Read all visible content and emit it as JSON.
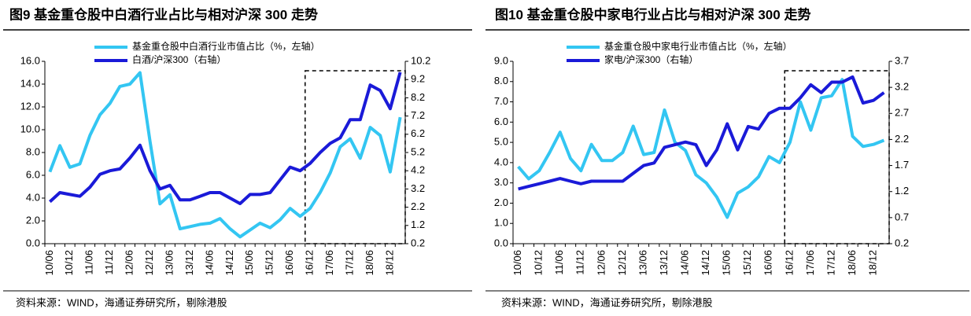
{
  "chart_data": [
    {
      "type": "line",
      "title": "图9  基金重仓股中白酒行业占比与相对沪深 300 走势",
      "source": "资料来源：WIND，海通证券研究所，剔除港股",
      "categories": [
        "10/06",
        null,
        "10/12",
        null,
        "11/06",
        null,
        "11/12",
        null,
        "12/06",
        null,
        "12/12",
        null,
        "13/06",
        null,
        "13/12",
        null,
        "14/06",
        null,
        "14/12",
        null,
        "15/06",
        null,
        "15/12",
        null,
        "16/06",
        null,
        "16/12",
        null,
        "17/06",
        null,
        "17/12",
        null,
        "18/06",
        null,
        "18/12",
        null
      ],
      "series": [
        {
          "name": "基金重仓股中白酒行业市值占比（%，左轴）",
          "color": "#33c6f2",
          "values": [
            6.3,
            8.6,
            6.7,
            7.0,
            9.5,
            11.3,
            12.3,
            13.8,
            14.0,
            15.0,
            9.0,
            3.5,
            4.3,
            1.3,
            1.5,
            1.7,
            1.8,
            2.2,
            1.3,
            0.6,
            1.2,
            1.8,
            1.4,
            2.1,
            3.1,
            2.4,
            3.1,
            4.5,
            6.2,
            8.5,
            9.2,
            7.5,
            10.2,
            9.5,
            6.3,
            11.1
          ]
        },
        {
          "name": "白酒/沪深300（右轴）",
          "color": "#1a1ad8",
          "axis": "y2",
          "values": [
            2.5,
            3.0,
            2.9,
            2.8,
            3.3,
            4.0,
            4.2,
            4.3,
            4.9,
            5.6,
            4.2,
            3.2,
            3.4,
            2.6,
            2.6,
            2.8,
            3.0,
            3.0,
            2.7,
            2.4,
            2.9,
            2.9,
            3.0,
            3.7,
            4.4,
            4.2,
            4.6,
            5.2,
            5.7,
            6.0,
            7.0,
            7.0,
            8.9,
            8.6,
            7.6,
            9.6
          ]
        }
      ],
      "ylim": [
        0,
        16
      ],
      "yticks": [
        {
          "value": 0,
          "label": "0.0"
        },
        {
          "value": 2,
          "label": "2.0"
        },
        {
          "value": 4,
          "label": "4.0"
        },
        {
          "value": 6,
          "label": "6.0"
        },
        {
          "value": 8,
          "label": "8.0"
        },
        {
          "value": 10,
          "label": "10.0"
        },
        {
          "value": 12,
          "label": "12.0"
        },
        {
          "value": 14,
          "label": "14.0"
        },
        {
          "value": 16,
          "label": "16.0"
        }
      ],
      "y2lim": [
        0.2,
        10.2
      ],
      "y2ticks": [
        0.2,
        1.2,
        2.2,
        3.2,
        4.2,
        5.2,
        6.2,
        7.2,
        8.2,
        9.2,
        10.2
      ]
    },
    {
      "type": "line",
      "title": "图10 基金重仓股中家电行业占比与相对沪深 300 走势",
      "source": "资料来源：WIND，海通证券研究所，剔除港股",
      "categories": [
        "10/06",
        null,
        "10/12",
        null,
        "11/06",
        null,
        "11/12",
        null,
        "12/06",
        null,
        "12/12",
        null,
        "13/06",
        null,
        "13/12",
        null,
        "14/06",
        null,
        "14/12",
        null,
        "15/06",
        null,
        "15/12",
        null,
        "16/06",
        null,
        "16/12",
        null,
        "17/06",
        null,
        "17/12",
        null,
        "18/06",
        null,
        "18/12",
        null
      ],
      "series": [
        {
          "name": "基金重仓股中家电行业市值占比（%，左轴）",
          "color": "#33c6f2",
          "values": [
            3.8,
            3.2,
            3.6,
            4.5,
            5.5,
            4.2,
            3.6,
            4.9,
            4.1,
            4.1,
            4.5,
            5.8,
            4.4,
            4.5,
            6.6,
            5.0,
            4.6,
            3.4,
            3.0,
            2.3,
            1.3,
            2.5,
            2.8,
            3.3,
            4.3,
            4.0,
            5.0,
            7.0,
            5.6,
            7.2,
            7.3,
            8.1,
            5.3,
            4.8,
            4.9,
            5.1
          ]
        },
        {
          "name": "家电/沪深300（右轴）",
          "color": "#1a1ad8",
          "axis": "y2",
          "values": [
            1.25,
            1.3,
            1.35,
            1.4,
            1.45,
            1.4,
            1.35,
            1.4,
            1.4,
            1.4,
            1.4,
            1.55,
            1.7,
            1.75,
            2.05,
            2.1,
            2.15,
            2.1,
            1.7,
            2.0,
            2.5,
            2.0,
            2.45,
            2.4,
            2.7,
            2.8,
            2.8,
            3.0,
            3.25,
            3.1,
            3.3,
            3.3,
            3.4,
            2.9,
            2.95,
            3.1
          ]
        }
      ],
      "ylim": [
        0,
        9
      ],
      "yticks": [
        {
          "value": 0,
          "label": "0.0"
        },
        {
          "value": 1,
          "label": "1.0"
        },
        {
          "value": 2,
          "label": "2.0"
        },
        {
          "value": 3,
          "label": "3.0"
        },
        {
          "value": 4,
          "label": "4.0"
        },
        {
          "value": 5,
          "label": "5.0"
        },
        {
          "value": 6,
          "label": "6.0"
        },
        {
          "value": 7,
          "label": "7.0"
        },
        {
          "value": 8,
          "label": "8.0"
        },
        {
          "value": 9,
          "label": "9.0"
        }
      ],
      "y2lim": [
        0.2,
        3.7
      ],
      "y2ticks": [
        0.2,
        0.7,
        1.2,
        1.7,
        2.2,
        2.7,
        3.2,
        3.7
      ]
    }
  ]
}
